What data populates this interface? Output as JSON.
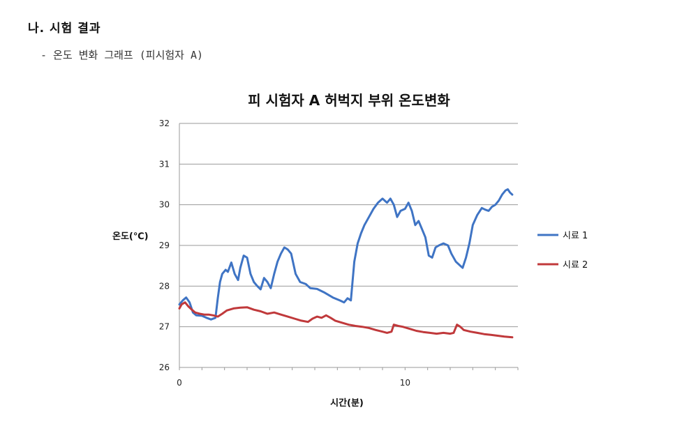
{
  "document": {
    "heading": "나. 시험 결과",
    "subheading": "- 온도 변화 그래프 (피시험자 A)"
  },
  "chart_data": {
    "type": "line",
    "title": "피 시험자 A 허벅지 부위 온도변화",
    "xlabel": "시간(분)",
    "ylabel": "온도(℃)",
    "xlim": [
      0,
      15
    ],
    "ylim": [
      26,
      32
    ],
    "xticks": [
      0,
      10
    ],
    "yticks": [
      26,
      27,
      28,
      29,
      30,
      31,
      32
    ],
    "grid": "horizontal",
    "legend_position": "right",
    "series": [
      {
        "name": "시료 1",
        "color": "#3f74c4",
        "points": [
          [
            0.0,
            27.55
          ],
          [
            0.15,
            27.65
          ],
          [
            0.3,
            27.72
          ],
          [
            0.45,
            27.6
          ],
          [
            0.6,
            27.35
          ],
          [
            0.75,
            27.28
          ],
          [
            1.0,
            27.27
          ],
          [
            1.2,
            27.22
          ],
          [
            1.4,
            27.18
          ],
          [
            1.6,
            27.22
          ],
          [
            1.7,
            27.7
          ],
          [
            1.8,
            28.1
          ],
          [
            1.9,
            28.3
          ],
          [
            2.05,
            28.4
          ],
          [
            2.15,
            28.35
          ],
          [
            2.3,
            28.58
          ],
          [
            2.45,
            28.3
          ],
          [
            2.6,
            28.15
          ],
          [
            2.7,
            28.45
          ],
          [
            2.85,
            28.75
          ],
          [
            3.0,
            28.7
          ],
          [
            3.15,
            28.3
          ],
          [
            3.3,
            28.1
          ],
          [
            3.45,
            28.0
          ],
          [
            3.6,
            27.92
          ],
          [
            3.75,
            28.2
          ],
          [
            3.9,
            28.1
          ],
          [
            4.05,
            27.95
          ],
          [
            4.2,
            28.3
          ],
          [
            4.35,
            28.6
          ],
          [
            4.5,
            28.8
          ],
          [
            4.65,
            28.95
          ],
          [
            4.8,
            28.9
          ],
          [
            4.95,
            28.8
          ],
          [
            5.15,
            28.3
          ],
          [
            5.35,
            28.1
          ],
          [
            5.6,
            28.05
          ],
          [
            5.8,
            27.95
          ],
          [
            6.1,
            27.93
          ],
          [
            6.4,
            27.85
          ],
          [
            6.8,
            27.72
          ],
          [
            7.1,
            27.65
          ],
          [
            7.3,
            27.6
          ],
          [
            7.45,
            27.7
          ],
          [
            7.6,
            27.65
          ],
          [
            7.75,
            28.6
          ],
          [
            7.9,
            29.05
          ],
          [
            8.05,
            29.3
          ],
          [
            8.2,
            29.5
          ],
          [
            8.4,
            29.7
          ],
          [
            8.6,
            29.9
          ],
          [
            8.8,
            30.05
          ],
          [
            9.0,
            30.15
          ],
          [
            9.2,
            30.05
          ],
          [
            9.35,
            30.15
          ],
          [
            9.5,
            30.0
          ],
          [
            9.65,
            29.7
          ],
          [
            9.8,
            29.85
          ],
          [
            10.0,
            29.9
          ],
          [
            10.15,
            30.05
          ],
          [
            10.3,
            29.85
          ],
          [
            10.45,
            29.5
          ],
          [
            10.6,
            29.6
          ],
          [
            10.75,
            29.4
          ],
          [
            10.9,
            29.2
          ],
          [
            11.05,
            28.75
          ],
          [
            11.2,
            28.7
          ],
          [
            11.35,
            28.95
          ],
          [
            11.5,
            29.0
          ],
          [
            11.7,
            29.05
          ],
          [
            11.9,
            29.0
          ],
          [
            12.05,
            28.8
          ],
          [
            12.25,
            28.6
          ],
          [
            12.45,
            28.5
          ],
          [
            12.55,
            28.45
          ],
          [
            12.7,
            28.7
          ],
          [
            12.85,
            29.05
          ],
          [
            13.0,
            29.5
          ],
          [
            13.2,
            29.75
          ],
          [
            13.4,
            29.92
          ],
          [
            13.55,
            29.88
          ],
          [
            13.7,
            29.85
          ],
          [
            13.85,
            29.95
          ],
          [
            14.0,
            30.0
          ],
          [
            14.15,
            30.1
          ],
          [
            14.3,
            30.25
          ],
          [
            14.45,
            30.35
          ],
          [
            14.55,
            30.38
          ],
          [
            14.65,
            30.3
          ],
          [
            14.75,
            30.25
          ]
        ]
      },
      {
        "name": "시료 2",
        "color": "#c0393b",
        "points": [
          [
            0.0,
            27.45
          ],
          [
            0.1,
            27.55
          ],
          [
            0.25,
            27.6
          ],
          [
            0.4,
            27.5
          ],
          [
            0.55,
            27.42
          ],
          [
            0.7,
            27.35
          ],
          [
            0.9,
            27.32
          ],
          [
            1.1,
            27.3
          ],
          [
            1.3,
            27.3
          ],
          [
            1.5,
            27.28
          ],
          [
            1.7,
            27.25
          ],
          [
            1.9,
            27.32
          ],
          [
            2.1,
            27.4
          ],
          [
            2.4,
            27.45
          ],
          [
            2.7,
            27.47
          ],
          [
            3.0,
            27.48
          ],
          [
            3.3,
            27.42
          ],
          [
            3.6,
            27.38
          ],
          [
            3.9,
            27.32
          ],
          [
            4.2,
            27.35
          ],
          [
            4.5,
            27.3
          ],
          [
            4.8,
            27.25
          ],
          [
            5.1,
            27.2
          ],
          [
            5.4,
            27.15
          ],
          [
            5.7,
            27.12
          ],
          [
            5.9,
            27.2
          ],
          [
            6.1,
            27.25
          ],
          [
            6.3,
            27.22
          ],
          [
            6.5,
            27.28
          ],
          [
            6.7,
            27.22
          ],
          [
            6.9,
            27.15
          ],
          [
            7.2,
            27.1
          ],
          [
            7.5,
            27.05
          ],
          [
            7.8,
            27.02
          ],
          [
            8.1,
            27.0
          ],
          [
            8.4,
            26.97
          ],
          [
            8.7,
            26.92
          ],
          [
            9.0,
            26.88
          ],
          [
            9.2,
            26.85
          ],
          [
            9.4,
            26.88
          ],
          [
            9.5,
            27.05
          ],
          [
            9.7,
            27.02
          ],
          [
            9.9,
            27.0
          ],
          [
            10.2,
            26.95
          ],
          [
            10.5,
            26.9
          ],
          [
            10.8,
            26.87
          ],
          [
            11.1,
            26.85
          ],
          [
            11.4,
            26.83
          ],
          [
            11.7,
            26.85
          ],
          [
            12.0,
            26.83
          ],
          [
            12.15,
            26.85
          ],
          [
            12.3,
            27.05
          ],
          [
            12.45,
            27.0
          ],
          [
            12.6,
            26.92
          ],
          [
            12.9,
            26.88
          ],
          [
            13.2,
            26.85
          ],
          [
            13.5,
            26.82
          ],
          [
            13.8,
            26.8
          ],
          [
            14.1,
            26.78
          ],
          [
            14.4,
            26.76
          ],
          [
            14.75,
            26.74
          ]
        ]
      }
    ]
  }
}
